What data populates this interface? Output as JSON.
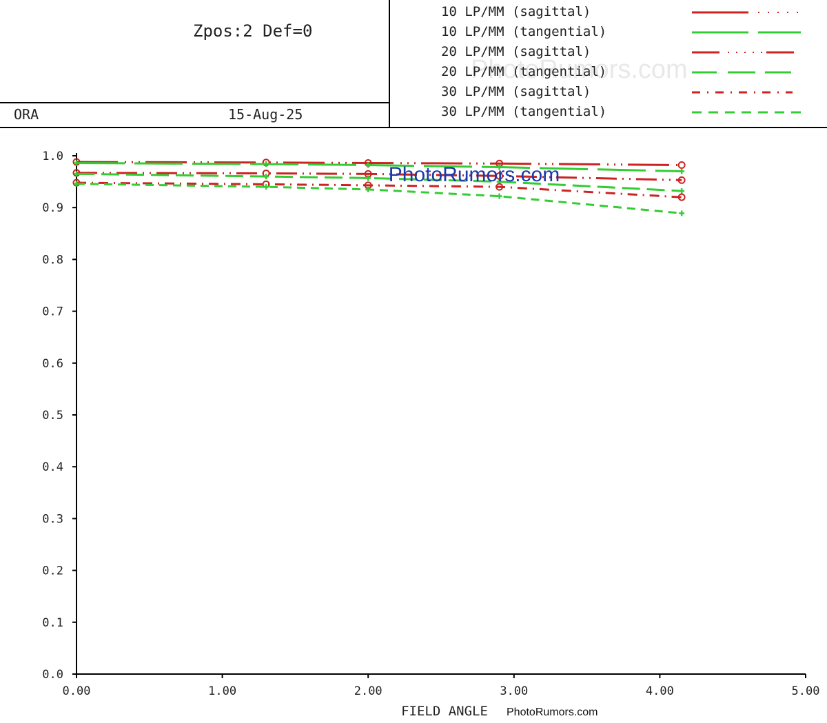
{
  "header": {
    "title": "Zpos:2 Def=0",
    "name": "ORA",
    "date": "15-Aug-25",
    "watermark": "PhotoRumors.com"
  },
  "legend": [
    {
      "label": "10 LP/MM (sagittal)",
      "color": "#cc2222",
      "style": "long-dash-dot"
    },
    {
      "label": "10 LP/MM (tangential)",
      "color": "#33cc33",
      "style": "long-dash"
    },
    {
      "label": "20 LP/MM (sagittal)",
      "color": "#cc2222",
      "style": "dash-dots"
    },
    {
      "label": "20 LP/MM (tangential)",
      "color": "#33cc33",
      "style": "dash-dot"
    },
    {
      "label": "30 LP/MM (sagittal)",
      "color": "#cc2222",
      "style": "dot-dash"
    },
    {
      "label": "30 LP/MM (tangential)",
      "color": "#33cc33",
      "style": "short-dash"
    }
  ],
  "chart_data": {
    "type": "line",
    "xlabel": "FIELD ANGLE",
    "ylabel": "",
    "xlim": [
      0,
      5
    ],
    "ylim": [
      0,
      1
    ],
    "x_ticks": [
      "0.00",
      "1.00",
      "2.00",
      "3.00",
      "4.00",
      "5.00"
    ],
    "y_ticks": [
      "0.0",
      "0.1",
      "0.2",
      "0.3",
      "0.4",
      "0.5",
      "0.6",
      "0.7",
      "0.8",
      "0.9",
      "1.0"
    ],
    "x": [
      0.0,
      1.3,
      2.0,
      2.9,
      4.15
    ],
    "series": [
      {
        "name": "10 LP/MM (sagittal)",
        "values": [
          0.988,
          0.987,
          0.986,
          0.985,
          0.982
        ]
      },
      {
        "name": "10 LP/MM (tangential)",
        "values": [
          0.986,
          0.984,
          0.982,
          0.978,
          0.97
        ]
      },
      {
        "name": "20 LP/MM (sagittal)",
        "values": [
          0.967,
          0.966,
          0.965,
          0.961,
          0.953
        ]
      },
      {
        "name": "20 LP/MM (tangential)",
        "values": [
          0.965,
          0.96,
          0.957,
          0.95,
          0.932
        ]
      },
      {
        "name": "30 LP/MM (sagittal)",
        "values": [
          0.948,
          0.945,
          0.943,
          0.94,
          0.92
        ]
      },
      {
        "name": "30 LP/MM (tangential)",
        "values": [
          0.946,
          0.94,
          0.935,
          0.922,
          0.889
        ]
      }
    ],
    "watermark_center": "PhotoRumors.com",
    "watermark_axis": "PhotoRumors.com",
    "grid": false
  }
}
